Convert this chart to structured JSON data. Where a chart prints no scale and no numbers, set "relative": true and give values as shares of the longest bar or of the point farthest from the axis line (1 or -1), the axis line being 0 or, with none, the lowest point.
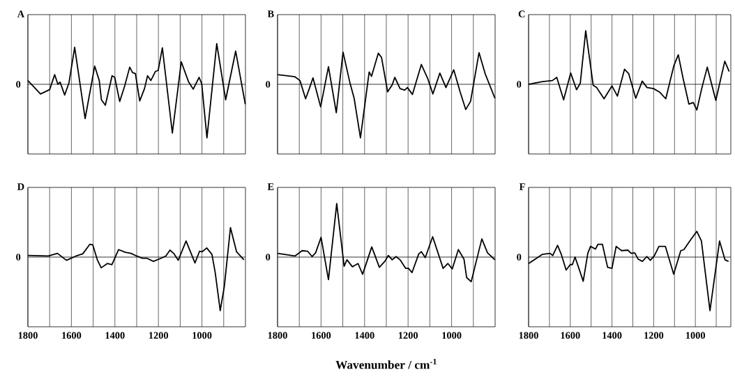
{
  "chart_data": [
    {
      "type": "line",
      "title": "A",
      "relative": true,
      "xlim": [
        1800,
        800
      ],
      "xticks": [
        1800,
        {
          "value": 1700,
          "label": null
        },
        1600,
        {
          "value": 1500,
          "label": null
        },
        1400,
        {
          "value": 1300,
          "label": null
        },
        1200,
        {
          "value": 1100,
          "label": null
        },
        1000,
        {
          "value": 900,
          "label": null
        }
      ],
      "grid": "x",
      "tick_labels": false,
      "annotations": [
        "0"
      ],
      "series": [
        {
          "color": "#000000",
          "x": [
            1800,
            1742,
            1700,
            1677,
            1662,
            1652,
            1631,
            1611,
            1585,
            1537,
            1493,
            1472,
            1462,
            1444,
            1413,
            1401,
            1378,
            1355,
            1332,
            1319,
            1306,
            1286,
            1264,
            1250,
            1235,
            1214,
            1201,
            1182,
            1136,
            1095,
            1062,
            1040,
            1013,
            1001,
            977,
            932,
            891,
            845,
            801
          ],
          "values": [
            0.07,
            -0.18,
            -0.1,
            0.18,
            0,
            0.04,
            -0.2,
            0.03,
            0.69,
            -0.64,
            0.34,
            0.07,
            -0.29,
            -0.39,
            0.16,
            0.13,
            -0.32,
            -0.03,
            0.32,
            0.22,
            0.2,
            -0.31,
            -0.08,
            0.16,
            0.07,
            0.24,
            0.26,
            0.68,
            -0.91,
            0.42,
            0.05,
            -0.09,
            0.13,
            0.01,
            -1,
            0.76,
            -0.29,
            0.62,
            -0.37
          ]
        }
      ]
    },
    {
      "type": "line",
      "title": "B",
      "relative": true,
      "xlim": [
        1800,
        800
      ],
      "xticks": [
        1800,
        {
          "value": 1700,
          "label": null
        },
        1600,
        {
          "value": 1500,
          "label": null
        },
        1400,
        {
          "value": 1300,
          "label": null
        },
        1200,
        {
          "value": 1100,
          "label": null
        },
        1000,
        {
          "value": 900,
          "label": null
        }
      ],
      "grid": "x",
      "tick_labels": false,
      "annotations": [
        "0"
      ],
      "series": [
        {
          "color": "#000000",
          "x": [
            1800,
            1720,
            1697,
            1671,
            1654,
            1637,
            1602,
            1566,
            1530,
            1499,
            1468,
            1448,
            1419,
            1379,
            1368,
            1337,
            1322,
            1294,
            1273,
            1261,
            1237,
            1216,
            1203,
            1180,
            1139,
            1110,
            1086,
            1054,
            1026,
            990,
            961,
            935,
            913,
            874,
            846,
            801
          ],
          "values": [
            0.18,
            0.14,
            0.07,
            -0.27,
            -0.08,
            0.12,
            -0.42,
            0.33,
            -0.53,
            0.6,
            0.04,
            -0.26,
            -1,
            0.23,
            0.15,
            0.58,
            0.5,
            -0.14,
            -0.01,
            0.13,
            -0.08,
            -0.11,
            -0.06,
            -0.19,
            0.37,
            0.11,
            -0.18,
            0.21,
            -0.06,
            0.27,
            -0.14,
            -0.47,
            -0.32,
            0.59,
            0.2,
            -0.26
          ]
        }
      ]
    },
    {
      "type": "line",
      "title": "C",
      "relative": true,
      "xlim": [
        1800,
        830
      ],
      "xticks": [
        1800,
        {
          "value": 1700,
          "label": null
        },
        1600,
        {
          "value": 1500,
          "label": null
        },
        1400,
        {
          "value": 1300,
          "label": null
        },
        1200,
        {
          "value": 1100,
          "label": null
        },
        1000,
        {
          "value": 900,
          "label": null
        }
      ],
      "grid": "x",
      "tick_labels": false,
      "annotations": [
        "0"
      ],
      "series": [
        {
          "color": "#000000",
          "x": [
            1800,
            1733,
            1686,
            1665,
            1632,
            1598,
            1570,
            1552,
            1526,
            1490,
            1474,
            1438,
            1400,
            1374,
            1340,
            1320,
            1286,
            1255,
            1232,
            1201,
            1170,
            1142,
            1103,
            1082,
            1059,
            1031,
            1010,
            993,
            969,
            943,
            902,
            859,
            838
          ],
          "values": [
            0,
            0.05,
            0.07,
            0.13,
            -0.29,
            0.21,
            -0.1,
            0.02,
            1,
            -0.02,
            -0.06,
            -0.27,
            -0.03,
            -0.22,
            0.28,
            0.2,
            -0.26,
            0.06,
            -0.06,
            -0.08,
            -0.15,
            -0.27,
            0.35,
            0.55,
            0.11,
            -0.37,
            -0.34,
            -0.48,
            -0.07,
            0.32,
            -0.3,
            0.43,
            0.24
          ]
        }
      ]
    },
    {
      "type": "line",
      "title": "D",
      "relative": true,
      "xlim": [
        1800,
        800
      ],
      "xticks": [
        1800,
        {
          "value": 1700,
          "label": null
        },
        1600,
        {
          "value": 1500,
          "label": null
        },
        1400,
        {
          "value": 1300,
          "label": null
        },
        1200,
        {
          "value": 1100,
          "label": null
        },
        1000,
        {
          "value": 900,
          "label": null
        }
      ],
      "grid": "x",
      "tick_labels": "x",
      "annotations": [
        "0"
      ],
      "series": [
        {
          "color": "#000000",
          "x": [
            1800,
            1706,
            1664,
            1623,
            1579,
            1548,
            1515,
            1502,
            1481,
            1463,
            1435,
            1414,
            1383,
            1352,
            1326,
            1300,
            1274,
            1254,
            1223,
            1187,
            1166,
            1147,
            1130,
            1109,
            1073,
            1032,
            1011,
            999,
            978,
            954,
            939,
            916,
            897,
            869,
            841,
            807
          ],
          "values": [
            0.03,
            0.02,
            0.07,
            -0.06,
            0.02,
            0.06,
            0.24,
            0.23,
            -0.05,
            -0.2,
            -0.12,
            -0.14,
            0.14,
            0.09,
            0.07,
            0.02,
            -0.02,
            -0.02,
            -0.08,
            -0.02,
            0.02,
            0.13,
            0.07,
            -0.06,
            0.3,
            -0.11,
            0.11,
            0.1,
            0.17,
            0.05,
            -0.29,
            -1,
            -0.54,
            0.55,
            0.1,
            -0.05
          ]
        }
      ]
    },
    {
      "type": "line",
      "title": "E",
      "xlabel": "Wavenumber / cm$^{-1}$",
      "relative": true,
      "xlim": [
        1800,
        800
      ],
      "xticks": [
        1800,
        {
          "value": 1700,
          "label": null
        },
        1600,
        {
          "value": 1500,
          "label": null
        },
        1400,
        {
          "value": 1300,
          "label": null
        },
        1200,
        {
          "value": 1100,
          "label": null
        },
        1000,
        {
          "value": 900,
          "label": null
        }
      ],
      "grid": "x",
      "tick_labels": "x",
      "annotations": [
        "0"
      ],
      "series": [
        {
          "color": "#000000",
          "x": [
            1800,
            1720,
            1687,
            1662,
            1641,
            1625,
            1600,
            1566,
            1528,
            1494,
            1481,
            1456,
            1430,
            1409,
            1367,
            1332,
            1307,
            1291,
            1273,
            1255,
            1237,
            1211,
            1198,
            1182,
            1151,
            1139,
            1121,
            1087,
            1039,
            1017,
            997,
            969,
            943,
            931,
            910,
            861,
            835,
            801
          ],
          "values": [
            0.07,
            0.02,
            0.12,
            0.11,
            0.01,
            0.08,
            0.37,
            -0.42,
            1,
            -0.17,
            -0.05,
            -0.18,
            -0.12,
            -0.32,
            0.19,
            -0.19,
            -0.08,
            0.03,
            -0.05,
            0.01,
            -0.05,
            -0.21,
            -0.21,
            -0.29,
            0.06,
            0.1,
            -0.01,
            0.38,
            -0.21,
            -0.12,
            -0.22,
            0.14,
            -0.04,
            -0.38,
            -0.46,
            0.34,
            0.08,
            -0.05
          ]
        }
      ]
    },
    {
      "type": "line",
      "title": "F",
      "relative": true,
      "xlim": [
        1800,
        830
      ],
      "xticks": [
        1800,
        {
          "value": 1700,
          "label": null
        },
        1600,
        {
          "value": 1500,
          "label": null
        },
        1400,
        {
          "value": 1300,
          "label": null
        },
        1200,
        {
          "value": 1100,
          "label": null
        },
        1000,
        {
          "value": 900,
          "label": null
        }
      ],
      "grid": "x",
      "tick_labels": "x",
      "annotations": [
        "0"
      ],
      "series": [
        {
          "color": "#000000",
          "x": [
            1800,
            1735,
            1697,
            1684,
            1661,
            1643,
            1620,
            1600,
            1590,
            1577,
            1538,
            1516,
            1503,
            1479,
            1467,
            1446,
            1421,
            1400,
            1380,
            1354,
            1324,
            1308,
            1291,
            1274,
            1254,
            1233,
            1216,
            1196,
            1175,
            1144,
            1104,
            1070,
            1055,
            1027,
            993,
            971,
            930,
            884,
            858,
            841
          ],
          "values": [
            -0.12,
            0.05,
            0.07,
            0.03,
            0.22,
            0.05,
            -0.24,
            -0.14,
            -0.14,
            0,
            -0.45,
            0.07,
            0.2,
            0.15,
            0.24,
            0.24,
            -0.19,
            -0.21,
            0.2,
            0.12,
            0.13,
            0.07,
            0.08,
            -0.04,
            -0.08,
            0.01,
            -0.06,
            0.03,
            0.2,
            0.2,
            -0.32,
            0.12,
            0.14,
            0.3,
            0.48,
            0.3,
            -1,
            0.3,
            -0.05,
            -0.08
          ]
        }
      ]
    }
  ]
}
